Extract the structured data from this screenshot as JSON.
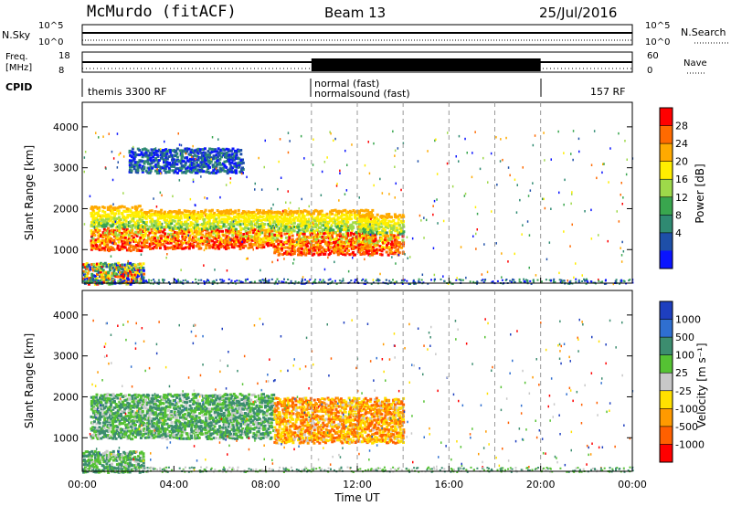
{
  "header": {
    "station": "McMurdo (fitACF)",
    "beam": "Beam 13",
    "date": "25/Jul/2016"
  },
  "top_panels": {
    "nsky_label": "N.Sky",
    "nsky_ticks": [
      "10^5",
      "10^0"
    ],
    "nsearch_label": "N.Search",
    "nsearch_ticks": [
      "10^5",
      "10^0"
    ],
    "freq_label_1": "Freq.",
    "freq_label_2": "[MHz]",
    "freq_ticks": [
      "18",
      "8"
    ],
    "nave_label": "Nave",
    "nave_ticks": [
      "60",
      "0"
    ],
    "cpid_label": "CPID",
    "cpid_entries": [
      "themis 3300 RF",
      "normal (fast)",
      "normalsound (fast)",
      "157 RF"
    ]
  },
  "chart_data": [
    {
      "type": "heatmap",
      "title": "",
      "xlabel": "",
      "ylabel": "Slant Range [km]",
      "xlim": [
        "00:00",
        "24:00"
      ],
      "ylim": [
        180,
        4600
      ],
      "yticks": [
        "1000",
        "2000",
        "3000",
        "4000"
      ],
      "colorbar": {
        "label": "Power [dB]",
        "ticks": [
          "28",
          "24",
          "20",
          "16",
          "12",
          "8",
          "4"
        ],
        "colors": [
          "#ff0000",
          "#ff6a00",
          "#ffaa00",
          "#ffee00",
          "#9ed94a",
          "#39a64e",
          "#2f8a72",
          "#1e4fa8",
          "#0a14ff"
        ]
      },
      "echo_regions": [
        {
          "t_start": "00:20",
          "t_end": "02:40",
          "range_km": [
            1000,
            2100
          ],
          "level": "high"
        },
        {
          "t_start": "02:40",
          "t_end": "08:20",
          "range_km": [
            1050,
            2000
          ],
          "level": "high"
        },
        {
          "t_start": "08:20",
          "t_end": "12:40",
          "range_km": [
            900,
            2000
          ],
          "level": "high"
        },
        {
          "t_start": "12:00",
          "t_end": "14:00",
          "range_km": [
            900,
            1900
          ],
          "level": "high"
        },
        {
          "t_start": "00:00",
          "t_end": "02:40",
          "range_km": [
            180,
            700
          ],
          "level": "mixed"
        },
        {
          "t_start": "02:00",
          "t_end": "07:00",
          "range_km": [
            2900,
            3500
          ],
          "level": "low"
        }
      ]
    },
    {
      "type": "heatmap",
      "title": "",
      "xlabel": "Time UT",
      "ylabel": "Slant Range [km]",
      "xlim": [
        "00:00",
        "24:00"
      ],
      "ylim": [
        180,
        4600
      ],
      "xticks": [
        "00:00",
        "04:00",
        "08:00",
        "12:00",
        "16:00",
        "20:00",
        "00:00"
      ],
      "yticks": [
        "1000",
        "2000",
        "3000",
        "4000"
      ],
      "colorbar": {
        "label": "Velocity [m s⁻¹]",
        "ticks": [
          "1000",
          "500",
          "100",
          "25",
          "-25",
          "-100",
          "-500",
          "-1000"
        ],
        "colors": [
          "#1e3fbf",
          "#2f6fd0",
          "#3c8d6f",
          "#55c233",
          "#c8c8c8",
          "#ffe000",
          "#ff9a00",
          "#ff6000",
          "#ff0000"
        ]
      },
      "echo_regions": [
        {
          "t_start": "00:20",
          "t_end": "08:20",
          "range_km": [
            1000,
            2100
          ],
          "velocity": "near-zero / slightly positive"
        },
        {
          "t_start": "08:20",
          "t_end": "14:00",
          "range_km": [
            900,
            2000
          ],
          "velocity": "negative (-100 to -500)"
        },
        {
          "t_start": "00:00",
          "t_end": "02:40",
          "range_km": [
            180,
            700
          ],
          "velocity": "near-zero"
        }
      ]
    }
  ]
}
